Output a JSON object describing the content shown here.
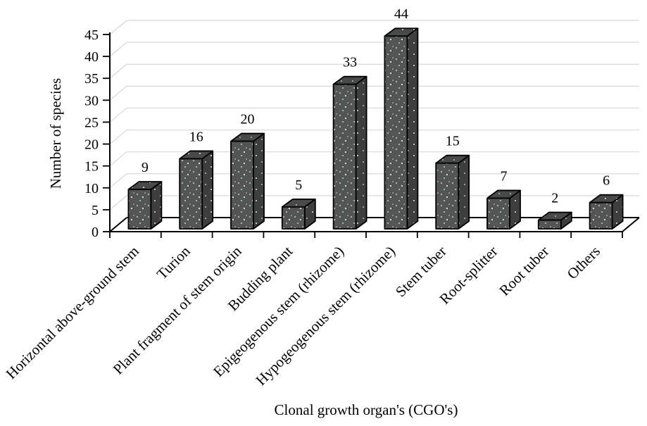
{
  "chart_data": {
    "type": "bar",
    "style": "3d-column",
    "title": "",
    "xlabel": "Clonal growth organ's (CGO's)",
    "ylabel": "Number of species",
    "categories": [
      "Horizontal above-ground stem",
      "Turion",
      "Plant fragment of stem origin",
      "Budding plant",
      "Epigeogenous stem (rhizome)",
      "Hypogeogenous stem (rhizome)",
      "Stem tuber",
      "Root-splitter",
      "Root tuber",
      "Others"
    ],
    "values": [
      9,
      16,
      20,
      5,
      33,
      44,
      15,
      7,
      2,
      6
    ],
    "y_ticks": [
      0,
      5,
      10,
      15,
      20,
      25,
      30,
      35,
      40,
      45
    ],
    "ylim": [
      0,
      45
    ],
    "grid": true,
    "legend": "none",
    "colors": {
      "background": "#ffffff",
      "axis": "#000000",
      "text": "#000000",
      "gridline": "#d8d8d8",
      "bar_front": "#545454",
      "bar_top": "#494949",
      "bar_side": "#3e3e3e",
      "bar_outline": "#000000",
      "speckle_green": "#8ecfa9",
      "speckle_pale": "#d9ece1"
    }
  }
}
